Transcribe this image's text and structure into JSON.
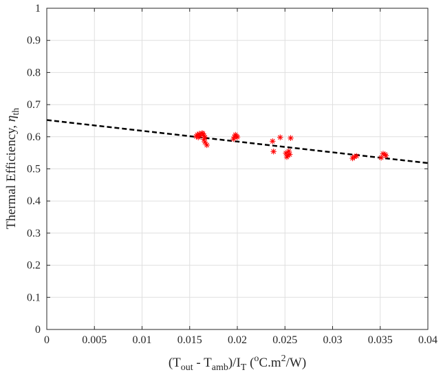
{
  "chart_data": {
    "type": "scatter",
    "title": "",
    "xlabel": {
      "parts": [
        {
          "t": "(T"
        },
        {
          "t": "out",
          "s": "sub"
        },
        {
          "t": " - T"
        },
        {
          "t": "amb",
          "s": "sub"
        },
        {
          "t": ")/I"
        },
        {
          "t": "T",
          "s": "sub"
        },
        {
          "t": " ("
        },
        {
          "t": "o",
          "s": "sup"
        },
        {
          "t": "C.m"
        },
        {
          "t": "2",
          "s": "sup"
        },
        {
          "t": "/W)"
        }
      ]
    },
    "ylabel": {
      "parts": [
        {
          "t": "Thermal Efficiency, "
        },
        {
          "t": "η",
          "s": "ital"
        },
        {
          "t": "th",
          "s": "sub"
        }
      ]
    },
    "xlim": [
      0,
      0.04
    ],
    "ylim": [
      0,
      1
    ],
    "xticks": [
      "0",
      "0.005",
      "0.01",
      "0.015",
      "0.02",
      "0.025",
      "0.03",
      "0.035",
      "0.04"
    ],
    "yticks": [
      "0",
      "0.1",
      "0.2",
      "0.3",
      "0.4",
      "0.5",
      "0.6",
      "0.7",
      "0.8",
      "0.9",
      "1"
    ],
    "grid": true,
    "series": [
      {
        "kind": "scatter",
        "marker": "asterisk",
        "color": "#ff0000",
        "x": [
          0.0157,
          0.0158,
          0.0159,
          0.016,
          0.0161,
          0.0163,
          0.0164,
          0.0165,
          0.0165,
          0.0166,
          0.0166,
          0.0168,
          0.0196,
          0.0197,
          0.0198,
          0.0199,
          0.02,
          0.0237,
          0.0238,
          0.0245,
          0.0251,
          0.0252,
          0.0253,
          0.0254,
          0.0255,
          0.0256,
          0.0321,
          0.0323,
          0.0325,
          0.0351,
          0.0353,
          0.0355,
          0.0356
        ],
        "y": [
          0.601,
          0.606,
          0.598,
          0.609,
          0.604,
          0.611,
          0.609,
          0.603,
          0.592,
          0.583,
          0.598,
          0.574,
          0.593,
          0.599,
          0.606,
          0.602,
          0.599,
          0.586,
          0.554,
          0.598,
          0.549,
          0.537,
          0.542,
          0.555,
          0.545,
          0.596,
          0.533,
          0.538,
          0.54,
          0.535,
          0.547,
          0.545,
          0.541
        ]
      },
      {
        "kind": "line",
        "style": "dashed",
        "color": "#000000",
        "x": [
          0,
          0.04
        ],
        "y": [
          0.652,
          0.518
        ]
      }
    ]
  }
}
